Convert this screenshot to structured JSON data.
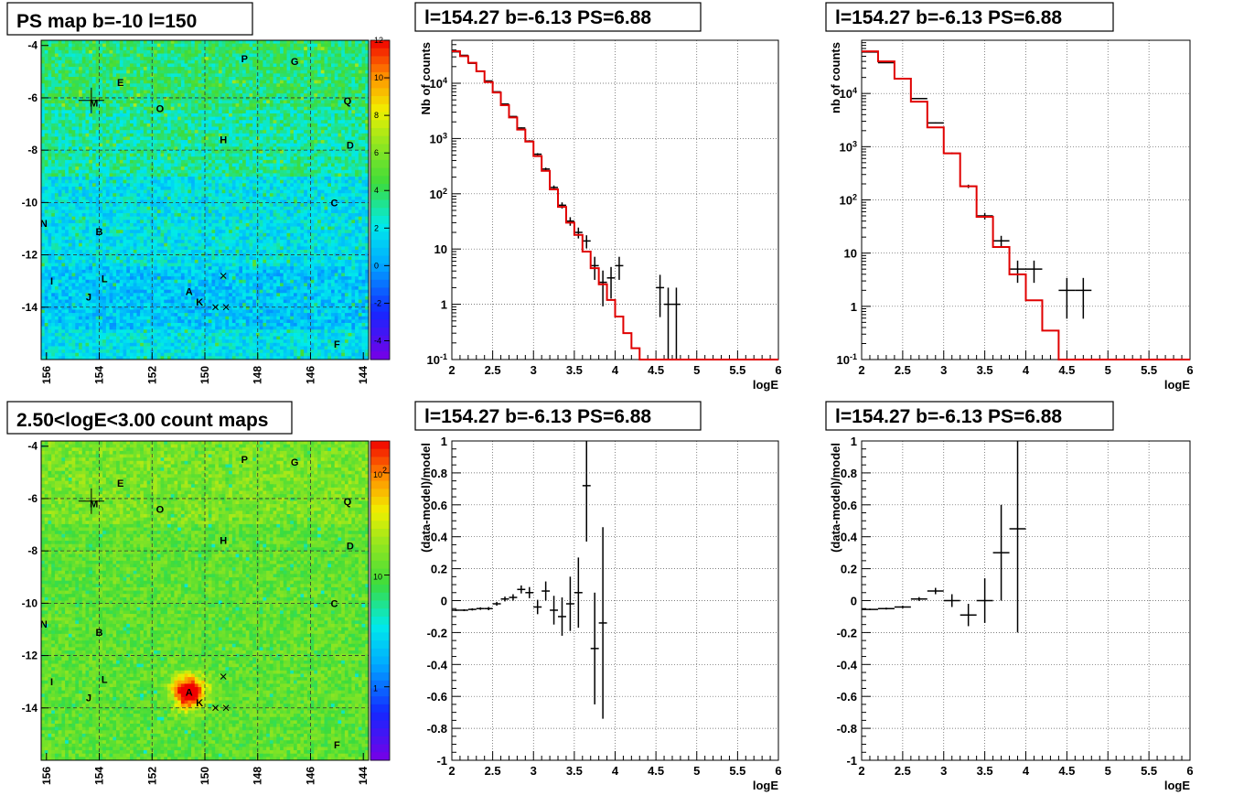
{
  "chart_data": [
    {
      "type": "heatmap",
      "title": "PS map b=-10 l=150",
      "x_tick_labels": [
        "156",
        "154",
        "152",
        "150",
        "148",
        "146",
        "144"
      ],
      "y_tick_labels": [
        "-4",
        "-6",
        "-8",
        "-10",
        "-12",
        "-14"
      ],
      "xlim": [
        156.2,
        143.8
      ],
      "ylim": [
        -16,
        -3.8
      ],
      "color_scale": "linear",
      "z_range": [
        -5,
        12
      ],
      "z_tick_labels": [
        "12",
        "10",
        "8",
        "6",
        "4",
        "2",
        "0",
        "-2",
        "-4"
      ],
      "grid": true,
      "sources": [
        {
          "label": "P",
          "l": 148.5,
          "b": -4.5
        },
        {
          "label": "G",
          "l": 146.6,
          "b": -4.6
        },
        {
          "label": "E",
          "l": 153.2,
          "b": -5.4
        },
        {
          "label": "M",
          "l": 154.2,
          "b": -6.2
        },
        {
          "label": "O",
          "l": 151.7,
          "b": -6.4
        },
        {
          "label": "Q",
          "l": 144.6,
          "b": -6.1
        },
        {
          "label": "H",
          "l": 149.3,
          "b": -7.6
        },
        {
          "label": "D",
          "l": 144.5,
          "b": -7.8
        },
        {
          "label": "C",
          "l": 145.1,
          "b": -10.0
        },
        {
          "label": "N",
          "l": 156.1,
          "b": -10.8
        },
        {
          "label": "B",
          "l": 154.0,
          "b": -11.1
        },
        {
          "label": "I",
          "l": 155.8,
          "b": -13.0
        },
        {
          "label": "L",
          "l": 153.8,
          "b": -12.9
        },
        {
          "label": "J",
          "l": 154.4,
          "b": -13.6
        },
        {
          "label": "A",
          "l": 150.6,
          "b": -13.4
        },
        {
          "label": "K",
          "l": 150.2,
          "b": -13.8
        },
        {
          "label": "F",
          "l": 145.0,
          "b": -15.4
        }
      ]
    },
    {
      "type": "line",
      "title": "l=154.27 b=-6.13 PS=6.88",
      "xlabel": "logE",
      "ylabel": "Nb of counts",
      "x_scale": "linear",
      "y_scale": "log",
      "xlim": [
        2,
        6
      ],
      "ylim": [
        0.1,
        60000
      ],
      "x_tick_labels": [
        "2",
        "2.5",
        "3",
        "3.5",
        "4",
        "4.5",
        "5",
        "5.5",
        "6"
      ],
      "y_tick_labels": [
        "10^4",
        "10^3",
        "10^2",
        "10",
        "1",
        "10^-1"
      ],
      "grid": true,
      "series": [
        {
          "kind": "data",
          "color": "#000000",
          "points": [
            {
              "x": 2.05,
              "y": 37000,
              "xerr": 0.05
            },
            {
              "x": 2.15,
              "y": 32000,
              "xerr": 0.05
            },
            {
              "x": 2.25,
              "y": 23000,
              "xerr": 0.05
            },
            {
              "x": 2.35,
              "y": 16500,
              "xerr": 0.05
            },
            {
              "x": 2.45,
              "y": 11000,
              "xerr": 0.05
            },
            {
              "x": 2.55,
              "y": 7000,
              "xerr": 0.05
            },
            {
              "x": 2.65,
              "y": 4200,
              "xerr": 0.05
            },
            {
              "x": 2.75,
              "y": 2500,
              "xerr": 0.05
            },
            {
              "x": 2.85,
              "y": 1550,
              "xerr": 0.05
            },
            {
              "x": 2.95,
              "y": 900,
              "xerr": 0.05
            },
            {
              "x": 3.05,
              "y": 520,
              "xerr": 0.05
            },
            {
              "x": 3.15,
              "y": 280,
              "xerr": 0.05
            },
            {
              "x": 3.25,
              "y": 130,
              "xerr": 0.05
            },
            {
              "x": 3.35,
              "y": 62,
              "xerr": 0.05
            },
            {
              "x": 3.45,
              "y": 32,
              "xerr": 0.05
            },
            {
              "x": 3.55,
              "y": 20,
              "xerr": 0.05
            },
            {
              "x": 3.65,
              "y": 14,
              "xerr": 0.05
            },
            {
              "x": 3.75,
              "y": 5,
              "xerr": 0.05
            },
            {
              "x": 3.85,
              "y": 2.5,
              "xerr": 0.05
            },
            {
              "x": 3.95,
              "y": 3,
              "xerr": 0.05
            },
            {
              "x": 4.05,
              "y": 5,
              "xerr": 0.05
            },
            {
              "x": 4.55,
              "y": 2,
              "xerr": 0.05
            },
            {
              "x": 4.65,
              "y": 1,
              "xerr": 0.05
            },
            {
              "x": 4.75,
              "y": 1,
              "xerr": 0.05
            }
          ]
        },
        {
          "kind": "model",
          "color": "#e00000",
          "step_edges": [
            2.0,
            2.1,
            2.2,
            2.3,
            2.4,
            2.5,
            2.6,
            2.7,
            2.8,
            2.9,
            3.0,
            3.1,
            3.2,
            3.3,
            3.4,
            3.5,
            3.6,
            3.7,
            3.8,
            3.9,
            4.0,
            4.1,
            4.2,
            4.3,
            4.4,
            6.0
          ],
          "step_values": [
            38000,
            31000,
            23500,
            16500,
            10500,
            6800,
            4000,
            2400,
            1450,
            880,
            480,
            260,
            120,
            58,
            30,
            18,
            9,
            4.5,
            2.3,
            1.2,
            0.6,
            0.3,
            0.16,
            0.1,
            0.1
          ]
        }
      ]
    },
    {
      "type": "line",
      "title": "l=154.27 b=-6.13 PS=6.88",
      "xlabel": "logE",
      "ylabel": "nb of counts",
      "x_scale": "linear",
      "y_scale": "log",
      "xlim": [
        2,
        6
      ],
      "ylim": [
        0.1,
        100000
      ],
      "x_tick_labels": [
        "2",
        "2.5",
        "3",
        "3.5",
        "4",
        "4.5",
        "5",
        "5.5",
        "6"
      ],
      "y_tick_labels": [
        "10^4",
        "10^3",
        "10^2",
        "10",
        "1",
        "10^-1"
      ],
      "grid": true,
      "series": [
        {
          "kind": "data",
          "color": "#000000",
          "points": [
            {
              "x": 2.1,
              "y": 60000,
              "xerr": 0.1
            },
            {
              "x": 2.3,
              "y": 38000,
              "xerr": 0.1
            },
            {
              "x": 2.5,
              "y": 19000,
              "xerr": 0.1
            },
            {
              "x": 2.7,
              "y": 8000,
              "xerr": 0.1
            },
            {
              "x": 2.9,
              "y": 2800,
              "xerr": 0.1
            },
            {
              "x": 3.1,
              "y": 750,
              "xerr": 0.1
            },
            {
              "x": 3.3,
              "y": 180,
              "xerr": 0.1
            },
            {
              "x": 3.5,
              "y": 50,
              "xerr": 0.1
            },
            {
              "x": 3.7,
              "y": 17,
              "xerr": 0.1
            },
            {
              "x": 3.9,
              "y": 5,
              "xerr": 0.1
            },
            {
              "x": 4.1,
              "y": 5,
              "xerr": 0.1
            },
            {
              "x": 4.5,
              "y": 2,
              "xerr": 0.1
            },
            {
              "x": 4.7,
              "y": 2,
              "xerr": 0.1
            }
          ]
        },
        {
          "kind": "model",
          "color": "#e00000",
          "step_edges": [
            2.0,
            2.2,
            2.4,
            2.6,
            2.8,
            3.0,
            3.2,
            3.4,
            3.6,
            3.8,
            4.0,
            4.2,
            4.4,
            6.0
          ],
          "step_values": [
            62000,
            40000,
            19000,
            7000,
            2300,
            750,
            180,
            48,
            13,
            4,
            1.3,
            0.35,
            0.1
          ]
        }
      ]
    },
    {
      "type": "heatmap",
      "title": "2.50<logE<3.00 count maps",
      "x_tick_labels": [
        "156",
        "154",
        "152",
        "150",
        "148",
        "146",
        "144"
      ],
      "y_tick_labels": [
        "-4",
        "-6",
        "-8",
        "-10",
        "-12",
        "-14"
      ],
      "xlim": [
        156.2,
        143.8
      ],
      "ylim": [
        -16,
        -3.8
      ],
      "color_scale": "log",
      "z_tick_labels": [
        "10^2",
        "10",
        "1"
      ],
      "grid": true,
      "sources": [
        {
          "label": "P",
          "l": 148.5,
          "b": -4.5
        },
        {
          "label": "G",
          "l": 146.6,
          "b": -4.6
        },
        {
          "label": "E",
          "l": 153.2,
          "b": -5.4
        },
        {
          "label": "M",
          "l": 154.2,
          "b": -6.2
        },
        {
          "label": "O",
          "l": 151.7,
          "b": -6.4
        },
        {
          "label": "Q",
          "l": 144.6,
          "b": -6.1
        },
        {
          "label": "H",
          "l": 149.3,
          "b": -7.6
        },
        {
          "label": "D",
          "l": 144.5,
          "b": -7.8
        },
        {
          "label": "C",
          "l": 145.1,
          "b": -10.0
        },
        {
          "label": "N",
          "l": 156.1,
          "b": -10.8
        },
        {
          "label": "B",
          "l": 154.0,
          "b": -11.1
        },
        {
          "label": "I",
          "l": 155.8,
          "b": -13.0
        },
        {
          "label": "L",
          "l": 153.8,
          "b": -12.9
        },
        {
          "label": "J",
          "l": 154.4,
          "b": -13.6
        },
        {
          "label": "A",
          "l": 150.6,
          "b": -13.4
        },
        {
          "label": "K",
          "l": 150.2,
          "b": -13.8
        },
        {
          "label": "F",
          "l": 145.0,
          "b": -15.4
        }
      ]
    },
    {
      "type": "scatter",
      "title": "l=154.27 b=-6.13 PS=6.88",
      "xlabel": "logE",
      "ylabel": "(data-model)/model",
      "xlim": [
        2,
        6
      ],
      "ylim": [
        -1,
        1
      ],
      "x_tick_labels": [
        "2",
        "2.5",
        "3",
        "3.5",
        "4",
        "4.5",
        "5",
        "5.5",
        "6"
      ],
      "y_tick_labels": [
        "1",
        "0.8",
        "0.6",
        "0.4",
        "0.2",
        "0",
        "-0.2",
        "-0.4",
        "-0.6",
        "-0.8",
        "-1"
      ],
      "grid": true,
      "series": [
        {
          "kind": "data",
          "color": "#000000",
          "points": [
            {
              "x": 2.05,
              "y": -0.06,
              "xerr": 0.05,
              "yerr": 0.005
            },
            {
              "x": 2.15,
              "y": -0.06,
              "xerr": 0.05,
              "yerr": 0.006
            },
            {
              "x": 2.25,
              "y": -0.055,
              "xerr": 0.05,
              "yerr": 0.007
            },
            {
              "x": 2.35,
              "y": -0.05,
              "xerr": 0.05,
              "yerr": 0.008
            },
            {
              "x": 2.45,
              "y": -0.05,
              "xerr": 0.05,
              "yerr": 0.01
            },
            {
              "x": 2.55,
              "y": -0.02,
              "xerr": 0.05,
              "yerr": 0.012
            },
            {
              "x": 2.65,
              "y": 0.01,
              "xerr": 0.05,
              "yerr": 0.015
            },
            {
              "x": 2.75,
              "y": 0.02,
              "xerr": 0.05,
              "yerr": 0.02
            },
            {
              "x": 2.85,
              "y": 0.07,
              "xerr": 0.05,
              "yerr": 0.025
            },
            {
              "x": 2.95,
              "y": 0.05,
              "xerr": 0.05,
              "yerr": 0.035
            },
            {
              "x": 3.05,
              "y": -0.04,
              "xerr": 0.05,
              "yerr": 0.045
            },
            {
              "x": 3.15,
              "y": 0.06,
              "xerr": 0.05,
              "yerr": 0.06
            },
            {
              "x": 3.25,
              "y": -0.06,
              "xerr": 0.05,
              "yerr": 0.09
            },
            {
              "x": 3.35,
              "y": -0.1,
              "xerr": 0.05,
              "yerr": 0.12
            },
            {
              "x": 3.45,
              "y": -0.02,
              "xerr": 0.05,
              "yerr": 0.17
            },
            {
              "x": 3.55,
              "y": 0.05,
              "xerr": 0.05,
              "yerr": 0.22
            },
            {
              "x": 3.65,
              "y": 0.72,
              "xerr": 0.05,
              "yerr": 0.35
            },
            {
              "x": 3.75,
              "y": -0.3,
              "xerr": 0.05,
              "yerr": 0.35
            },
            {
              "x": 3.85,
              "y": -0.14,
              "xerr": 0.05,
              "yerr": 0.6
            }
          ]
        }
      ]
    },
    {
      "type": "scatter",
      "title": "l=154.27 b=-6.13 PS=6.88",
      "xlabel": "logE",
      "ylabel": "(data-model)/model",
      "xlim": [
        2,
        6
      ],
      "ylim": [
        -1,
        1
      ],
      "x_tick_labels": [
        "2",
        "2.5",
        "3",
        "3.5",
        "4",
        "4.5",
        "5",
        "5.5",
        "6"
      ],
      "y_tick_labels": [
        "1",
        "0.8",
        "0.6",
        "0.4",
        "0.2",
        "0",
        "-0.2",
        "-0.4",
        "-0.6",
        "-0.8",
        "-1"
      ],
      "grid": true,
      "series": [
        {
          "kind": "data",
          "color": "#000000",
          "points": [
            {
              "x": 2.1,
              "y": -0.055,
              "xerr": 0.1,
              "yerr": 0.005
            },
            {
              "x": 2.3,
              "y": -0.05,
              "xerr": 0.1,
              "yerr": 0.006
            },
            {
              "x": 2.5,
              "y": -0.04,
              "xerr": 0.1,
              "yerr": 0.008
            },
            {
              "x": 2.7,
              "y": 0.01,
              "xerr": 0.1,
              "yerr": 0.012
            },
            {
              "x": 2.9,
              "y": 0.06,
              "xerr": 0.1,
              "yerr": 0.02
            },
            {
              "x": 3.1,
              "y": 0.0,
              "xerr": 0.1,
              "yerr": 0.04
            },
            {
              "x": 3.3,
              "y": -0.09,
              "xerr": 0.1,
              "yerr": 0.07
            },
            {
              "x": 3.5,
              "y": 0.0,
              "xerr": 0.1,
              "yerr": 0.14
            },
            {
              "x": 3.7,
              "y": 0.3,
              "xerr": 0.1,
              "yerr": 0.3
            },
            {
              "x": 3.9,
              "y": 0.45,
              "xerr": 0.1,
              "yerr": 0.65
            }
          ]
        }
      ]
    }
  ]
}
